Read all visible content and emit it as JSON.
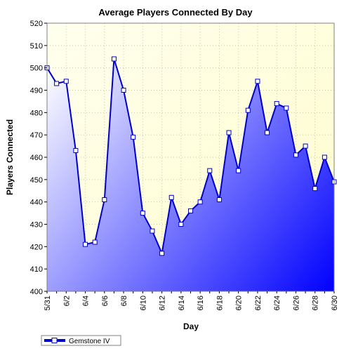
{
  "chart_data": {
    "type": "area",
    "title": "Average Players Connected By Day",
    "xlabel": "Day",
    "ylabel": "Players Connected",
    "ylim": [
      400,
      520
    ],
    "yticks": [
      400,
      410,
      420,
      430,
      440,
      450,
      460,
      470,
      480,
      490,
      500,
      510,
      520
    ],
    "grid": true,
    "legend": "bottom-left",
    "categories": [
      "5/31",
      "6/1",
      "6/2",
      "6/3",
      "6/4",
      "6/5",
      "6/6",
      "6/7",
      "6/8",
      "6/9",
      "6/10",
      "6/11",
      "6/12",
      "6/13",
      "6/14",
      "6/15",
      "6/16",
      "6/17",
      "6/18",
      "6/19",
      "6/20",
      "6/21",
      "6/22",
      "6/23",
      "6/24",
      "6/25",
      "6/26",
      "6/27",
      "6/28",
      "6/29",
      "6/30"
    ],
    "tick_labels": [
      "5/31",
      "6/2",
      "6/4",
      "6/6",
      "6/8",
      "6/10",
      "6/12",
      "6/14",
      "6/16",
      "6/18",
      "6/20",
      "6/22",
      "6/24",
      "6/26",
      "6/28",
      "6/30"
    ],
    "series": [
      {
        "name": "Gemstone IV",
        "values": [
          500,
          493,
          494,
          463,
          421,
          422,
          441,
          504,
          490,
          469,
          435,
          427,
          417,
          442,
          430,
          436,
          440,
          454,
          441,
          471,
          454,
          481,
          494,
          471,
          484,
          482,
          461,
          465,
          446,
          460,
          449
        ]
      }
    ],
    "colors": {
      "plot_bg_top": "#ffffee",
      "plot_bg_bottom": "#fffccc",
      "area_light": "#ffffff",
      "area_dark": "#0000ff",
      "line": "#0000cc",
      "grid": "#c8c8a0"
    }
  }
}
